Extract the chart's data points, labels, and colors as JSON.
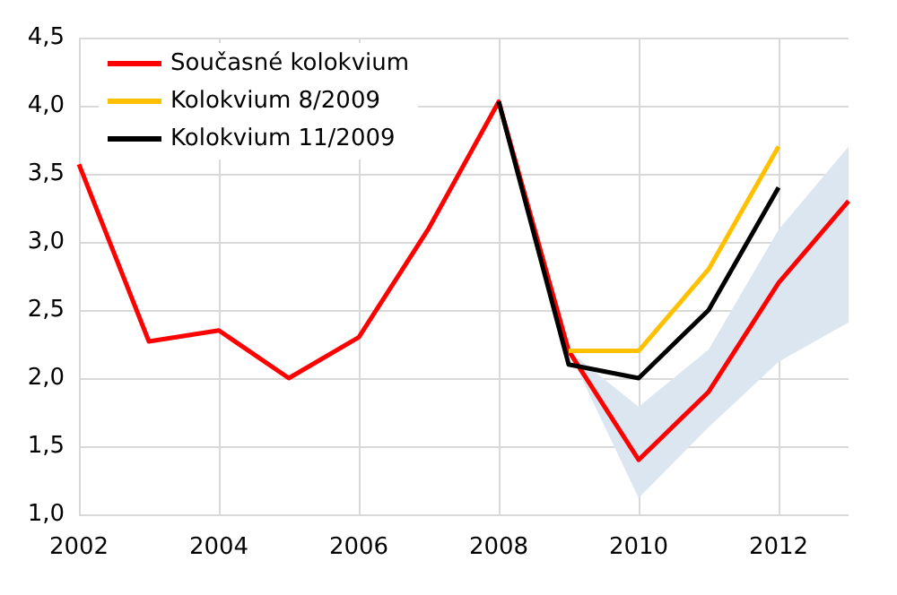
{
  "chart_data": {
    "type": "line",
    "xlim": [
      2002,
      2013
    ],
    "xticks": [
      2002,
      2004,
      2006,
      2008,
      2010,
      2012
    ],
    "ylim": [
      1.0,
      4.5
    ],
    "yticks": [
      {
        "value": 1.0,
        "label": "1,0"
      },
      {
        "value": 1.5,
        "label": "1,5"
      },
      {
        "value": 2.0,
        "label": "2,0"
      },
      {
        "value": 2.5,
        "label": "2,5"
      },
      {
        "value": 3.0,
        "label": "3,0"
      },
      {
        "value": 3.5,
        "label": "3,5"
      },
      {
        "value": 4.0,
        "label": "4,0"
      },
      {
        "value": 4.5,
        "label": "4,5"
      }
    ],
    "grid": true,
    "legend": "top left",
    "marker": "none",
    "line_style": "solid",
    "series": [
      {
        "name": "Současné kolokvium",
        "color": "#ff0000",
        "x": [
          2002,
          2003,
          2004,
          2005,
          2006,
          2007,
          2008,
          2009,
          2010,
          2011,
          2012,
          2013
        ],
        "values": [
          3.57,
          2.27,
          2.35,
          2.0,
          2.3,
          3.1,
          4.03,
          2.2,
          1.4,
          1.9,
          2.7,
          3.3
        ],
        "lower": [
          null,
          null,
          null,
          null,
          null,
          null,
          null,
          2.2,
          1.12,
          1.64,
          2.12,
          2.41
        ],
        "upper": [
          null,
          null,
          null,
          null,
          null,
          null,
          null,
          2.2,
          1.79,
          2.21,
          3.09,
          3.7
        ]
      },
      {
        "name": "Kolokvium 8/2009",
        "color": "#ffc000",
        "x": [
          2009,
          2010,
          2011,
          2012
        ],
        "values": [
          2.2,
          2.2,
          2.8,
          3.7
        ]
      },
      {
        "name": "Kolokvium 11/2009",
        "color": "#000000",
        "x": [
          2008,
          2009,
          2010,
          2011,
          2012
        ],
        "values": [
          4.03,
          2.1,
          2.0,
          2.5,
          3.4
        ]
      }
    ]
  }
}
